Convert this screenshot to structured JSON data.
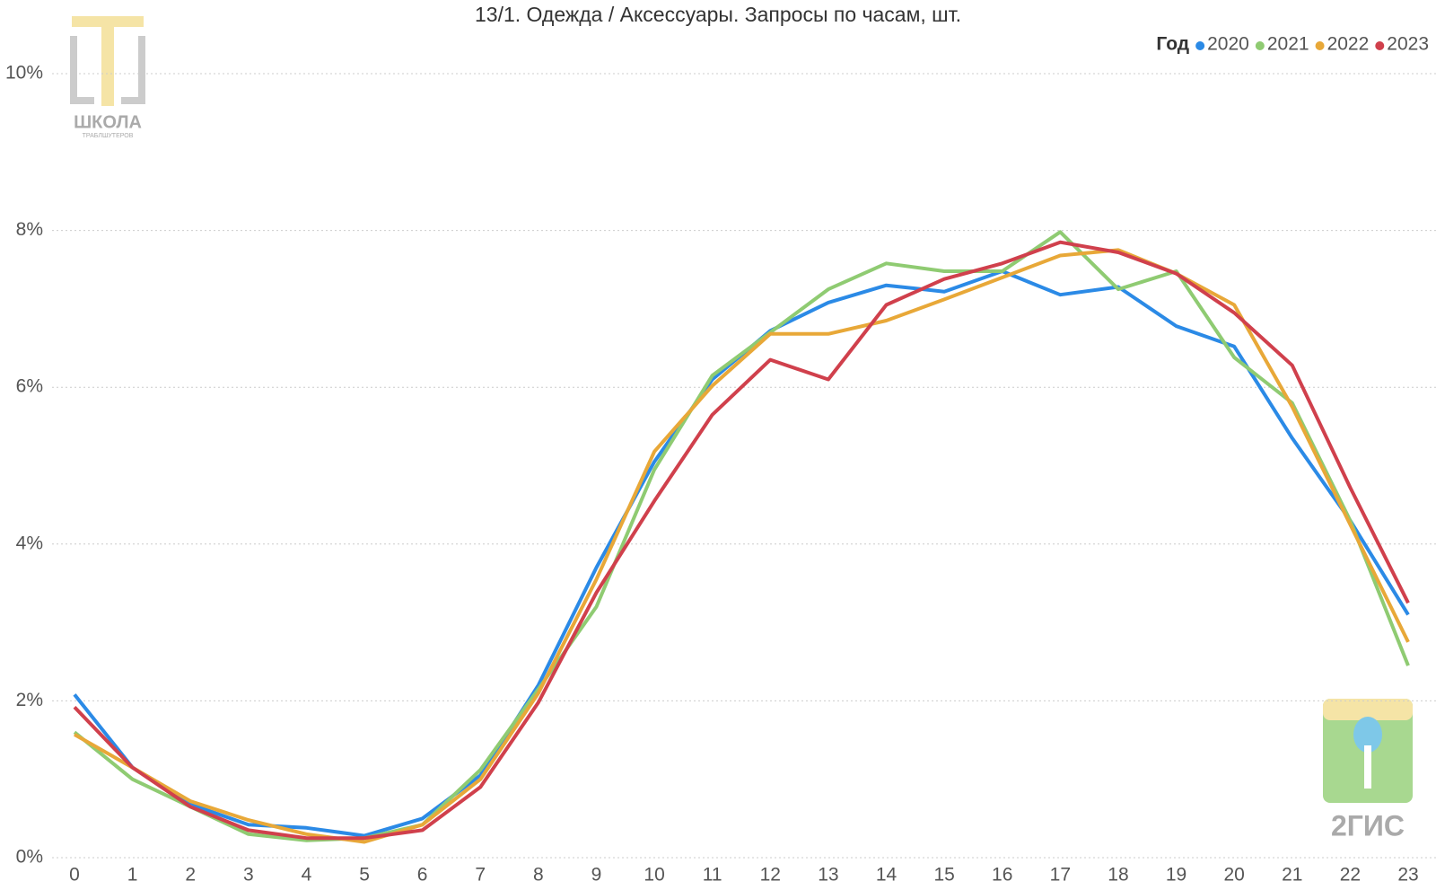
{
  "chart_data": {
    "type": "line",
    "title": "13/1. Одежда / Аксессуары. Запросы по часам, шт.",
    "legend_title": "Год",
    "legend_position": "top-right",
    "categories": [
      "0",
      "1",
      "2",
      "3",
      "4",
      "5",
      "6",
      "7",
      "8",
      "9",
      "10",
      "11",
      "12",
      "13",
      "14",
      "15",
      "16",
      "17",
      "18",
      "19",
      "20",
      "21",
      "22",
      "23"
    ],
    "series": [
      {
        "name": "2020",
        "color": "#2b8ae6",
        "values": [
          2.08,
          1.15,
          0.68,
          0.42,
          0.38,
          0.28,
          0.5,
          1.05,
          2.2,
          3.7,
          5.05,
          6.1,
          6.72,
          7.08,
          7.3,
          7.22,
          7.48,
          7.18,
          7.28,
          6.78,
          6.52,
          5.35,
          4.3,
          3.1
        ]
      },
      {
        "name": "2021",
        "color": "#8fcb72",
        "values": [
          1.6,
          1.0,
          0.65,
          0.3,
          0.22,
          0.25,
          0.42,
          1.12,
          2.15,
          3.2,
          4.95,
          6.15,
          6.7,
          7.25,
          7.58,
          7.48,
          7.48,
          7.98,
          7.25,
          7.48,
          6.38,
          5.8,
          4.3,
          2.45
        ]
      },
      {
        "name": "2022",
        "color": "#e8a838",
        "values": [
          1.57,
          1.15,
          0.72,
          0.48,
          0.3,
          0.2,
          0.42,
          1.0,
          2.1,
          3.55,
          5.18,
          6.02,
          6.68,
          6.68,
          6.85,
          7.12,
          7.4,
          7.68,
          7.75,
          7.45,
          7.05,
          5.75,
          4.25,
          2.75
        ]
      },
      {
        "name": "2023",
        "color": "#d0404c",
        "values": [
          1.92,
          1.15,
          0.65,
          0.35,
          0.25,
          0.25,
          0.35,
          0.9,
          1.98,
          3.38,
          4.55,
          5.65,
          6.35,
          6.1,
          7.05,
          7.38,
          7.58,
          7.85,
          7.72,
          7.45,
          6.95,
          6.28,
          4.72,
          3.25
        ]
      }
    ],
    "ylim": [
      0,
      10
    ],
    "yticks": [
      {
        "value": 0,
        "label": "0%"
      },
      {
        "value": 2,
        "label": "2%"
      },
      {
        "value": 4,
        "label": "4%"
      },
      {
        "value": 6,
        "label": "6%"
      },
      {
        "value": 8,
        "label": "8%"
      },
      {
        "value": 10,
        "label": "10%"
      }
    ],
    "grid": true
  },
  "logos": {
    "school": "ШКОЛА",
    "school_sub": "ТРАБЛШУТЕРОВ",
    "gis": "2ГИС"
  }
}
